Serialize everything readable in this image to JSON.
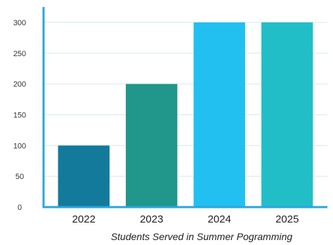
{
  "chart_data": {
    "type": "bar",
    "title": "Students Served in Summer Pogramming",
    "xlabel": "",
    "ylabel": "",
    "categories": [
      "2022",
      "2023",
      "2024",
      "2025"
    ],
    "values": [
      100,
      200,
      300,
      300
    ],
    "ylim": [
      0,
      325
    ],
    "yticks": [
      0,
      50,
      100,
      150,
      200,
      250,
      300
    ],
    "grid": true,
    "legend": "none",
    "bar_colors": [
      "#137a9c",
      "#21968a",
      "#21c0f0",
      "#21bec8"
    ],
    "axis_color": "#2aa6dc",
    "grid_color": "#d4e8f2"
  }
}
